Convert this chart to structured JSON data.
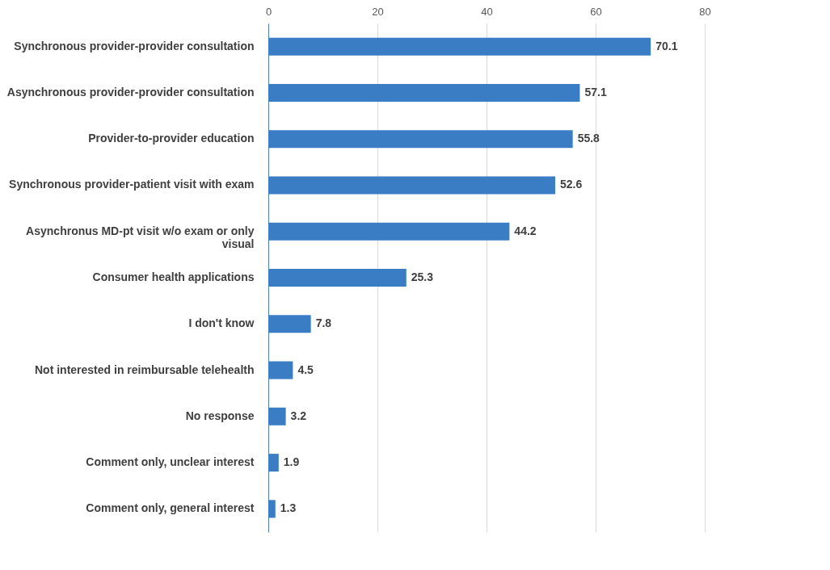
{
  "chart_data": {
    "type": "bar",
    "orientation": "horizontal",
    "categories": [
      "Synchronous provider-provider consultation",
      "Asynchronous provider-provider consultation",
      "Provider-to-provider education",
      "Synchronous provider-patient visit with exam",
      "Asynchronus MD-pt visit w/o exam or  only visual",
      "Consumer health applications",
      "I don't know",
      "Not interested in reimbursable telehealth",
      "No response",
      "Comment only, unclear interest",
      "Comment only, general interest"
    ],
    "values": [
      70.1,
      57.1,
      55.8,
      52.6,
      44.2,
      25.3,
      7.8,
      4.5,
      3.2,
      1.9,
      1.3
    ],
    "color": "#3b7dc4",
    "xlim": [
      0,
      80
    ],
    "xticks": [
      0,
      20,
      40,
      60,
      80
    ],
    "grid": "x",
    "data_labels": true
  }
}
